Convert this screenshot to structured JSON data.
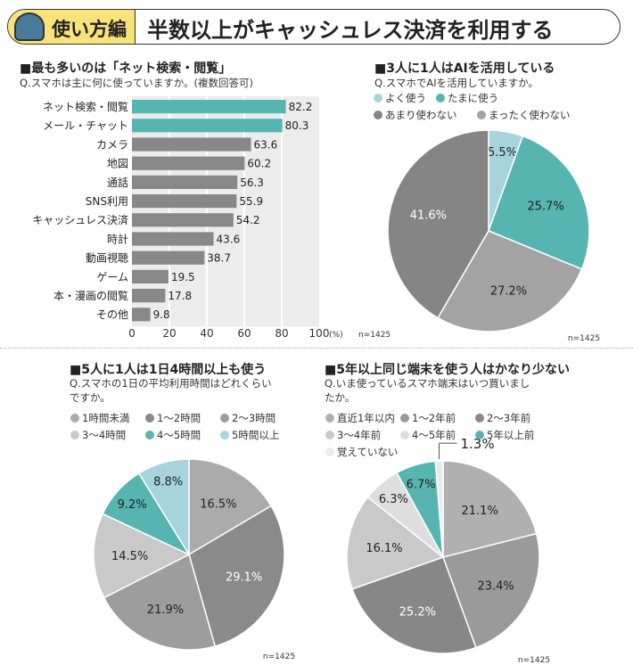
{
  "header": {
    "badge": "使い方編",
    "title": "半数以上がキャッシュレス決済を利用する"
  },
  "colors": {
    "teal": "#56b5b0",
    "lightblue": "#a6d3dc",
    "bar_gray": "#888888",
    "badge_yellow": "#f7e37a"
  },
  "chart_data": [
    {
      "type": "bar",
      "orientation": "horizontal",
      "title": "■最も多いのは「ネット検索・閲覧」",
      "subtitle": "Q.スマホは主に何に使っていますか。(複数回答可)",
      "categories": [
        "ネット検索・閲覧",
        "メール・チャット",
        "カメラ",
        "地図",
        "通話",
        "SNS利用",
        "キャッシュレス決済",
        "時計",
        "動画視聴",
        "ゲーム",
        "本・漫画の閲覧",
        "その他"
      ],
      "values": [
        82.2,
        80.3,
        63.6,
        60.2,
        56.3,
        55.9,
        54.2,
        43.6,
        38.7,
        19.5,
        17.8,
        9.8
      ],
      "highlight": [
        0,
        1
      ],
      "xlim": [
        0,
        100
      ],
      "xticks": [
        0,
        20,
        40,
        60,
        80,
        100
      ],
      "xunit": "(%)",
      "n": "n=1425",
      "grid": true
    },
    {
      "type": "pie",
      "title": "■3人に1人はAIを活用している",
      "subtitle": "Q.スマホでAIを活用していますか。",
      "slices": [
        {
          "name": "よく使う",
          "value": 5.5,
          "color": "#a6d3dc"
        },
        {
          "name": "たまに使う",
          "value": 25.7,
          "color": "#56b5b0"
        },
        {
          "name": "まったく使わない",
          "value": 27.2,
          "color": "#a3a3a3"
        },
        {
          "name": "あまり使わない",
          "value": 41.6,
          "color": "#858585"
        }
      ],
      "legend": [
        "よく使う",
        "たまに使う",
        "あまり使わない",
        "まったく使わない"
      ],
      "legend_colors": [
        "#a6d3dc",
        "#56b5b0",
        "#858585",
        "#a3a3a3"
      ],
      "n": "n=1425"
    },
    {
      "type": "pie",
      "title": "■5人に1人は1日4時間以上も使う",
      "subtitle": [
        "Q.スマホの1日の平均利用時間はどれくらい",
        "ですか。"
      ],
      "slices": [
        {
          "name": "1時間未満",
          "value": 16.5,
          "color": "#ababab"
        },
        {
          "name": "1〜2時間",
          "value": 29.1,
          "color": "#8a8a8a"
        },
        {
          "name": "2〜3時間",
          "value": 21.9,
          "color": "#9d9d9d"
        },
        {
          "name": "3〜4時間",
          "value": 14.5,
          "color": "#c9c9c9"
        },
        {
          "name": "4〜5時間",
          "value": 9.2,
          "color": "#56b5b0"
        },
        {
          "name": "5時間以上",
          "value": 8.8,
          "color": "#a6d3dc"
        }
      ],
      "legend": [
        "1時間未満",
        "1〜2時間",
        "2〜3時間",
        "3〜4時間",
        "4〜5時間",
        "5時間以上"
      ],
      "n": "n=1425"
    },
    {
      "type": "pie",
      "title": "■5年以上同じ端末を使う人はかなり少ない",
      "subtitle": [
        "Q.いま使っているスマホ端末はいつ買いまし",
        "たか。"
      ],
      "slices": [
        {
          "name": "直近1年以内",
          "value": 21.1,
          "color": "#b0b0b0"
        },
        {
          "name": "1〜2年前",
          "value": 23.4,
          "color": "#9a9a9a"
        },
        {
          "name": "2〜3年前",
          "value": 25.2,
          "color": "#878787"
        },
        {
          "name": "3〜4年前",
          "value": 16.1,
          "color": "#c9c9c9"
        },
        {
          "name": "4〜5年前",
          "value": 6.3,
          "color": "#dedede"
        },
        {
          "name": "5年以上前",
          "value": 6.7,
          "color": "#56b5b0"
        },
        {
          "name": "覚えていない",
          "value": 1.3,
          "color": "#e6ecf0"
        }
      ],
      "legend": [
        "直近1年以内",
        "1〜2年前",
        "2〜3年前",
        "3〜4年前",
        "4〜5年前",
        "5年以上前",
        "覚えていない"
      ],
      "n": "n=1425"
    }
  ]
}
